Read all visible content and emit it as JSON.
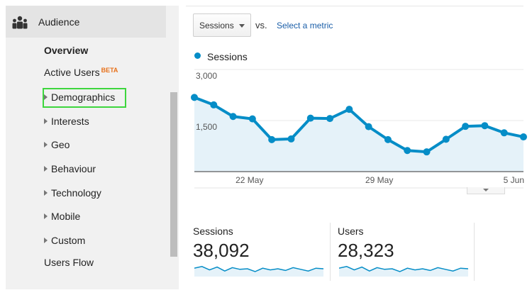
{
  "sidebar": {
    "section": {
      "label": "Audience",
      "icon": "audience-people-icon"
    },
    "items": [
      {
        "label": "Overview",
        "bold": true,
        "expandable": false
      },
      {
        "label": "Active Users",
        "badge": "BETA",
        "expandable": false
      },
      {
        "label": "Demographics",
        "expandable": true,
        "highlighted": true
      },
      {
        "label": "Interests",
        "expandable": true
      },
      {
        "label": "Geo",
        "expandable": true
      },
      {
        "label": "Behaviour",
        "expandable": true
      },
      {
        "label": "Technology",
        "expandable": true
      },
      {
        "label": "Mobile",
        "expandable": true
      },
      {
        "label": "Custom",
        "expandable": true
      },
      {
        "label": "Users Flow",
        "expandable": false
      }
    ]
  },
  "controls": {
    "metric_dropdown": "Sessions",
    "vs_label": "vs.",
    "select_metric_link": "Select a metric"
  },
  "chart_data": {
    "type": "area",
    "legend": "Sessions",
    "series": [
      {
        "name": "Sessions",
        "values": [
          2180,
          1960,
          1620,
          1550,
          940,
          960,
          1570,
          1560,
          1830,
          1320,
          940,
          620,
          580,
          950,
          1330,
          1350,
          1140,
          1020
        ]
      }
    ],
    "ylim": [
      0,
      3000
    ],
    "y_ticks": [
      "3,000",
      "1,500"
    ],
    "x_ticks": [
      "22 May",
      "29 May",
      "5 Jun"
    ],
    "grid": true,
    "color": "#058dc7",
    "fill_color": "#e5f2f9"
  },
  "scorecards": [
    {
      "label": "Sessions",
      "value": "38,092",
      "spark": [
        0.55,
        0.7,
        0.4,
        0.65,
        0.3,
        0.6,
        0.45,
        0.5,
        0.25,
        0.55,
        0.4,
        0.5,
        0.35,
        0.6,
        0.45,
        0.3,
        0.55,
        0.5
      ]
    },
    {
      "label": "Users",
      "value": "28,323",
      "spark": [
        0.55,
        0.7,
        0.4,
        0.65,
        0.3,
        0.6,
        0.45,
        0.5,
        0.25,
        0.55,
        0.4,
        0.5,
        0.35,
        0.6,
        0.45,
        0.3,
        0.55,
        0.5
      ]
    }
  ],
  "colors": {
    "accent": "#058dc7",
    "link": "#1a5ea8",
    "beta": "#e8711a",
    "highlight": "#3ed63e"
  }
}
